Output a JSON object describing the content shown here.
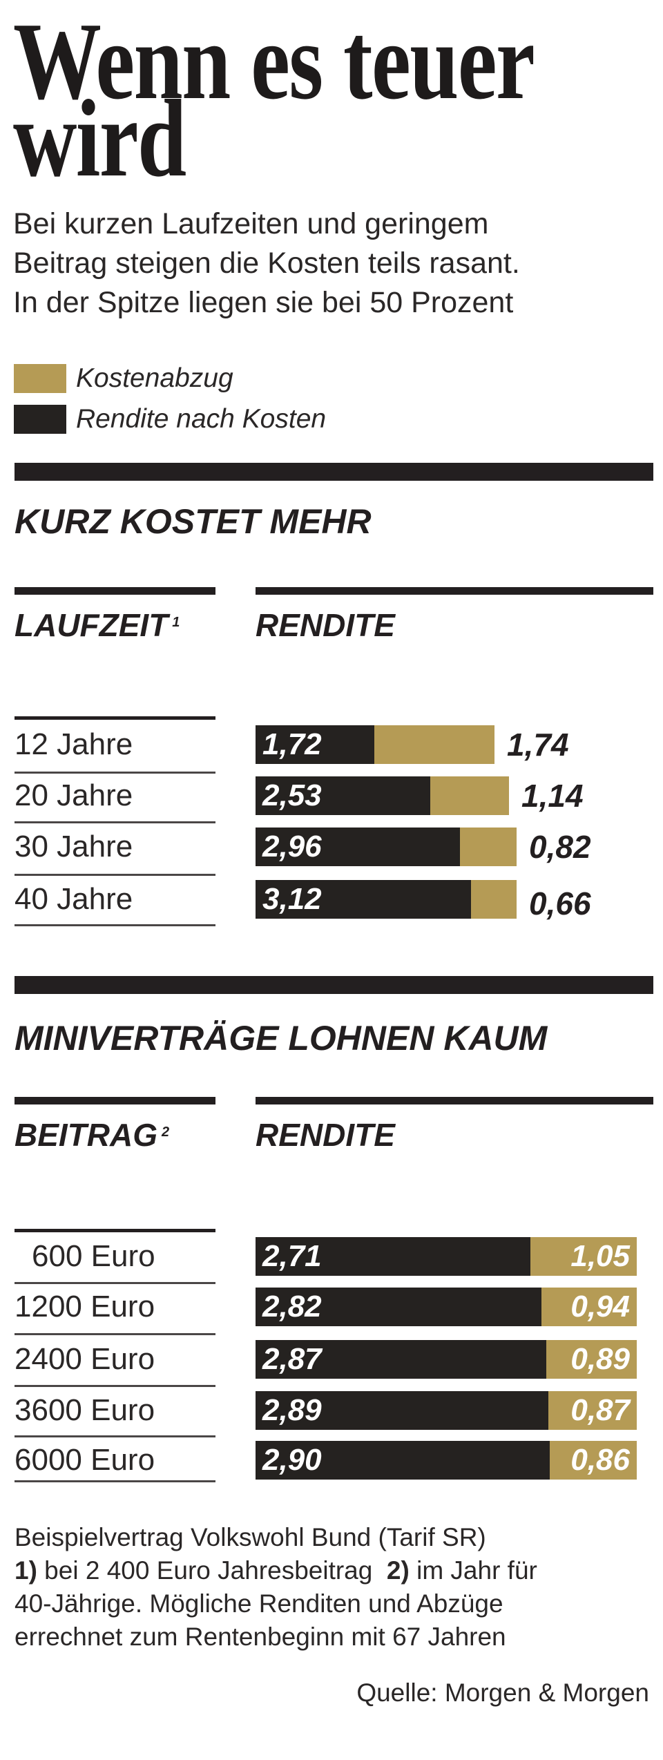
{
  "title_line1": "Wenn es teuer",
  "title_line2": "wird",
  "subtitle": [
    "Bei kurzen Laufzeiten und geringem",
    "Beitrag steigen die Kosten teils rasant.",
    "In der Spitze liegen sie bei 50 Prozent"
  ],
  "colors": {
    "kostenabzug": "#b59b55",
    "rendite": "#252220"
  },
  "legend": [
    {
      "label": "Kostenabzug",
      "color": "#b59b55"
    },
    {
      "label": "Rendite nach Kosten",
      "color": "#252220"
    }
  ],
  "chart_data": [
    {
      "type": "bar",
      "orientation": "horizontal",
      "stacked": true,
      "title": "KURZ KOSTET MEHR",
      "category_header": "LAUFZEIT",
      "category_header_note": "1",
      "value_header": "RENDITE",
      "categories": [
        "12 Jahre",
        "20 Jahre",
        "30 Jahre",
        "40 Jahre"
      ],
      "series": [
        {
          "name": "Rendite nach Kosten",
          "values": [
            1.72,
            2.53,
            2.96,
            3.12
          ],
          "labels": [
            "1,72",
            "2,53",
            "2,96",
            "3,12"
          ]
        },
        {
          "name": "Kostenabzug",
          "values": [
            1.74,
            1.14,
            0.82,
            0.66
          ],
          "labels": [
            "1,74",
            "1,14",
            "0,82",
            "0,66"
          ]
        }
      ]
    },
    {
      "type": "bar",
      "orientation": "horizontal",
      "stacked": true,
      "normalized": true,
      "title": "MINIVERTRÄGE LOHNEN KAUM",
      "category_header": "BEITRAG",
      "category_header_note": "2",
      "value_header": "RENDITE",
      "categories": [
        "600 Euro",
        "1200 Euro",
        "2400 Euro",
        "3600 Euro",
        "6000 Euro"
      ],
      "series": [
        {
          "name": "Rendite nach Kosten",
          "values": [
            2.71,
            2.82,
            2.87,
            2.89,
            2.9
          ],
          "labels": [
            "2,71",
            "2,82",
            "2,87",
            "2,89",
            "2,90"
          ]
        },
        {
          "name": "Kostenabzug",
          "values": [
            1.05,
            0.94,
            0.89,
            0.87,
            0.86
          ],
          "labels": [
            "1,05",
            "0,94",
            "0,89",
            "0,87",
            "0,86"
          ]
        }
      ]
    }
  ],
  "footnote": {
    "line1": "Beispielvertrag Volkswohl Bund (Tarif SR)",
    "n1": "1)",
    "n1_text": " bei 2 400 Euro Jahresbeitrag  ",
    "n2": "2)",
    "n2_text": " im Jahr für",
    "line3": "40-Jährige. Mögliche Renditen und Abzüge",
    "line4": "errechnet zum Rentenbeginn mit 67 Jahren"
  },
  "source": "Quelle: Morgen & Morgen"
}
